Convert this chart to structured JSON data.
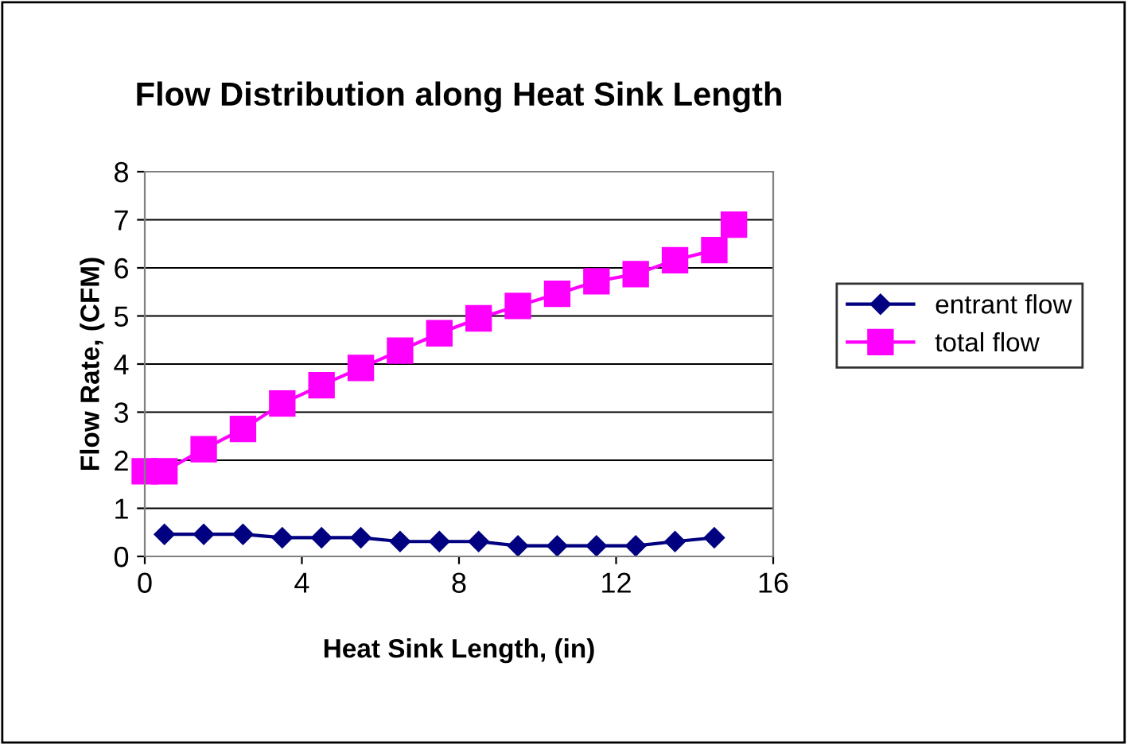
{
  "chart_data": {
    "type": "line",
    "title": "Flow Distribution along Heat Sink Length",
    "xlabel": "Heat Sink Length, (in)",
    "ylabel": "Flow Rate, (CFM)",
    "xlim": [
      0,
      16
    ],
    "xticks": [
      0,
      4,
      8,
      12,
      16
    ],
    "ylim": [
      0,
      8
    ],
    "yticks": [
      0,
      1,
      2,
      3,
      4,
      5,
      6,
      7,
      8
    ],
    "grid": "y",
    "legend": "right",
    "series": [
      {
        "name": "entrant flow",
        "color": "#000080",
        "marker": "diamond",
        "x": [
          0.5,
          1.5,
          2.5,
          3.5,
          4.5,
          5.5,
          6.5,
          7.5,
          8.5,
          9.5,
          10.5,
          11.5,
          12.5,
          13.5,
          14.5
        ],
        "values": [
          0.46,
          0.46,
          0.46,
          0.39,
          0.39,
          0.39,
          0.31,
          0.31,
          0.31,
          0.22,
          0.22,
          0.22,
          0.22,
          0.31,
          0.39
        ]
      },
      {
        "name": "total flow",
        "color": "#ff00ff",
        "marker": "square",
        "x": [
          0,
          0.5,
          1.5,
          2.5,
          3.5,
          4.5,
          5.5,
          6.5,
          7.5,
          8.5,
          9.5,
          10.5,
          11.5,
          12.5,
          13.5,
          14.5,
          15
        ],
        "values": [
          1.77,
          1.77,
          2.23,
          2.65,
          3.18,
          3.56,
          3.92,
          4.28,
          4.64,
          4.95,
          5.21,
          5.46,
          5.72,
          5.87,
          6.16,
          6.37,
          6.9
        ]
      }
    ]
  }
}
